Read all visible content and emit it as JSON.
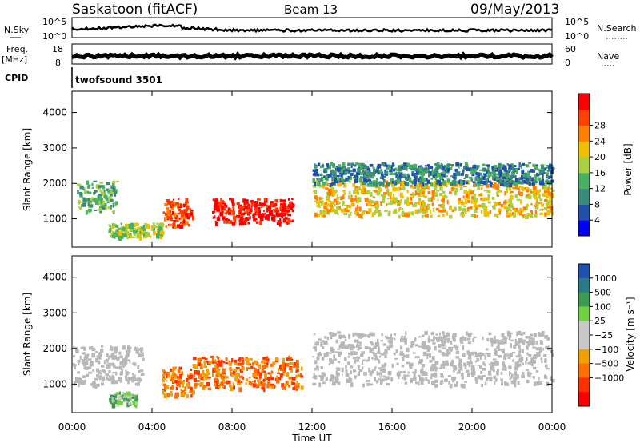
{
  "header": {
    "radar": "Saskatoon (fitACF)",
    "beam": "Beam 13",
    "date": "09/May/2013"
  },
  "strip_labels": {
    "nsky": "N.Sky",
    "nsky_tick_hi": "10^5",
    "nsky_tick_lo": "10^0",
    "nsearch": "N.Search",
    "nsearch_tick_hi": "10^5",
    "nsearch_tick_lo": "10^0",
    "freq": "Freq.",
    "freq_unit": "[MHz]",
    "freq_tick_hi": "18",
    "freq_tick_lo": "8",
    "nave": "Nave",
    "nave_tick_hi": "60",
    "nave_tick_lo": "0",
    "cpid": "CPID",
    "cpid_value": "twofsound 3501"
  },
  "colors": {
    "power": [
      "#0000ff",
      "#2050a8",
      "#3a8a7a",
      "#48b060",
      "#a8d040",
      "#f0c000",
      "#ff8000",
      "#ff4000",
      "#ff0000"
    ],
    "velocity": [
      "#2050b0",
      "#2a7a8a",
      "#3a9a50",
      "#70d040",
      "#c8c8c8",
      "#c8c8c8",
      "#f0a000",
      "#ff7000",
      "#ff3000",
      "#ff0000"
    ],
    "gray": "#b8b8b8"
  },
  "chart_data": [
    {
      "type": "heatmap",
      "name": "power",
      "ylabel": "Slant Range [km]",
      "yticks": [
        "1000",
        "2000",
        "3000",
        "4000"
      ],
      "ylim": [
        200,
        4600
      ],
      "colorbar_label": "Power [dB]",
      "colorbar_ticks": [
        "4",
        "8",
        "12",
        "16",
        "20",
        "24",
        "28"
      ],
      "xlim_hours": [
        0,
        24
      ],
      "bands": [
        {
          "t0": 0.2,
          "t1": 2.2,
          "r0": 1200,
          "r1": 2100,
          "level": 3
        },
        {
          "t0": 1.8,
          "t1": 4.5,
          "r0": 500,
          "r1": 900,
          "level": 4
        },
        {
          "t0": 4.5,
          "t1": 6.0,
          "r0": 800,
          "r1": 1600,
          "level": 7
        },
        {
          "t0": 7.0,
          "t1": 11.0,
          "r0": 900,
          "r1": 1600,
          "level": 8
        },
        {
          "t0": 12.0,
          "t1": 24.0,
          "r0": 1100,
          "r1": 2100,
          "level": 5
        },
        {
          "t0": 12.0,
          "t1": 24.0,
          "r0": 2000,
          "r1": 2600,
          "level": 2
        }
      ]
    },
    {
      "type": "heatmap",
      "name": "velocity",
      "ylabel": "Slant Range [km]",
      "yticks": [
        "1000",
        "2000",
        "3000",
        "4000"
      ],
      "ylim": [
        200,
        4600
      ],
      "colorbar_label": "Velocity [m s⁻¹]",
      "colorbar_ticks": [
        "1000",
        "500",
        "100",
        "25",
        "−25",
        "−100",
        "−500",
        "−1000"
      ],
      "xlabel": "Time UT",
      "xticks": [
        "00:00",
        "04:00",
        "08:00",
        "12:00",
        "16:00",
        "20:00",
        "00:00"
      ],
      "xlim_hours": [
        0,
        24
      ],
      "bands": [
        {
          "t0": 0.0,
          "t1": 3.5,
          "r0": 1000,
          "r1": 2100,
          "level": "gray"
        },
        {
          "t0": 1.8,
          "t1": 3.2,
          "r0": 450,
          "r1": 800,
          "level": 3
        },
        {
          "t0": 4.5,
          "t1": 6.0,
          "r0": 700,
          "r1": 1500,
          "level": 7
        },
        {
          "t0": 6.0,
          "t1": 11.5,
          "r0": 900,
          "r1": 1800,
          "level": 7
        },
        {
          "t0": 12.0,
          "t1": 24.0,
          "r0": 1000,
          "r1": 2500,
          "level": "gray"
        }
      ]
    }
  ]
}
